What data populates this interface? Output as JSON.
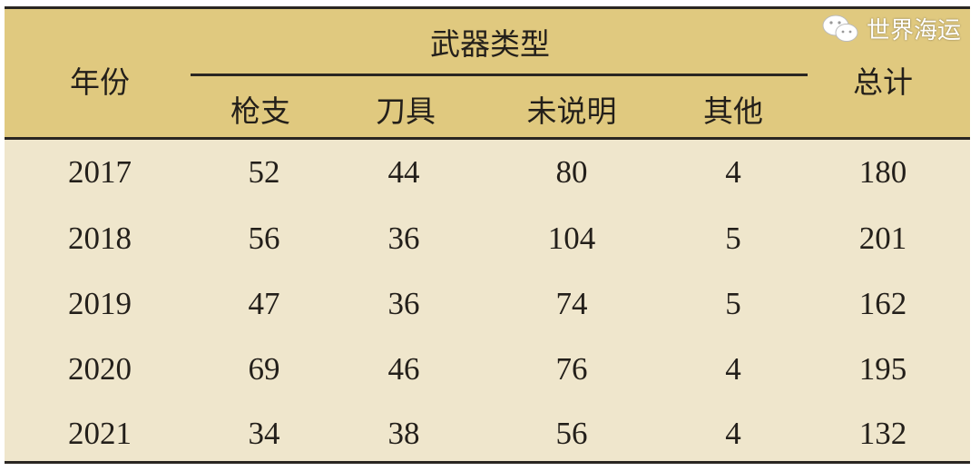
{
  "chart_data": {
    "type": "table",
    "header_group": "武器类型",
    "columns": [
      "年份",
      "枪支",
      "刀具",
      "未说明",
      "其他",
      "总计"
    ],
    "rows": [
      [
        "2017",
        "52",
        "44",
        "80",
        "4",
        "180"
      ],
      [
        "2018",
        "56",
        "36",
        "104",
        "5",
        "201"
      ],
      [
        "2019",
        "47",
        "36",
        "74",
        "5",
        "162"
      ],
      [
        "2020",
        "69",
        "46",
        "76",
        "4",
        "195"
      ],
      [
        "2021",
        "34",
        "38",
        "56",
        "4",
        "132"
      ]
    ]
  },
  "colors": {
    "header_bg": "#e0c97f",
    "body_bg": "#efe6cc",
    "rule": "#2a2622"
  },
  "watermark": {
    "icon": "wechat-icon",
    "text": "世界海运"
  }
}
